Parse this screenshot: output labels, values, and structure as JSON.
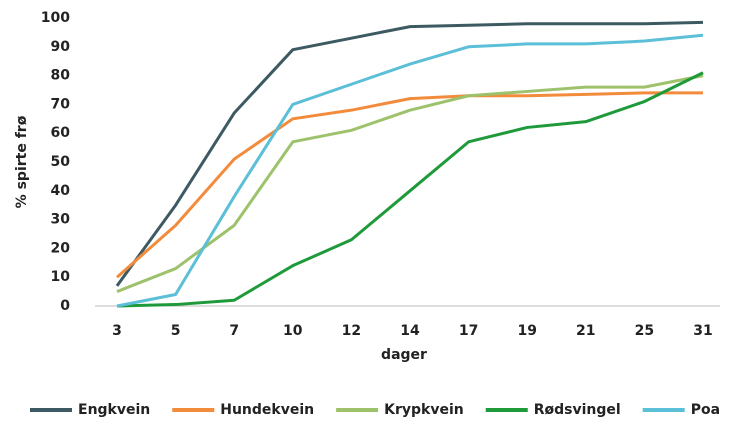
{
  "chart_data": {
    "type": "line",
    "xlabel": "dager",
    "ylabel": "% spirte frø",
    "categories": [
      "3",
      "5",
      "7",
      "10",
      "12",
      "14",
      "17",
      "19",
      "21",
      "25",
      "31"
    ],
    "series": [
      {
        "name": "Engkvein",
        "color": "#3d5a63",
        "values": [
          7,
          35,
          67,
          89,
          93,
          97,
          97.5,
          98,
          98,
          98,
          98.5
        ]
      },
      {
        "name": "Hundekvein",
        "color": "#f28c3c",
        "values": [
          10,
          28,
          51,
          65,
          68,
          72,
          73,
          73,
          73.5,
          74,
          74
        ]
      },
      {
        "name": "Krypkvein",
        "color": "#9dc26b",
        "values": [
          5,
          13,
          28,
          57,
          61,
          68,
          73,
          74.5,
          76,
          76,
          80
        ]
      },
      {
        "name": "Rødsvingel",
        "color": "#1f9a3a",
        "values": [
          0,
          0.5,
          2,
          14,
          23,
          40,
          57,
          62,
          64,
          71,
          81
        ]
      },
      {
        "name": "Poa",
        "color": "#5bbfd8",
        "values": [
          0,
          4,
          38,
          70,
          77,
          84,
          90,
          91,
          91,
          92,
          94
        ]
      }
    ],
    "ylim": [
      0,
      100
    ],
    "yticks": [
      0,
      10,
      20,
      30,
      40,
      50,
      60,
      70,
      80,
      90,
      100
    ],
    "grid": false,
    "legend": "bottom"
  }
}
